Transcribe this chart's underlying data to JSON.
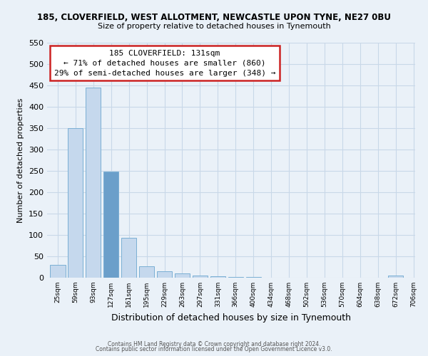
{
  "title": "185, CLOVERFIELD, WEST ALLOTMENT, NEWCASTLE UPON TYNE, NE27 0BU",
  "subtitle": "Size of property relative to detached houses in Tynemouth",
  "xlabel": "Distribution of detached houses by size in Tynemouth",
  "ylabel": "Number of detached properties",
  "bar_values": [
    30,
    350,
    445,
    248,
    93,
    27,
    15,
    10,
    5,
    3,
    2,
    1,
    0,
    0,
    0,
    0,
    0,
    0,
    0,
    5
  ],
  "bin_labels": [
    "25sqm",
    "59sqm",
    "93sqm",
    "127sqm",
    "161sqm",
    "195sqm",
    "229sqm",
    "263sqm",
    "297sqm",
    "331sqm",
    "366sqm",
    "400sqm",
    "434sqm",
    "468sqm",
    "502sqm",
    "536sqm",
    "570sqm",
    "604sqm",
    "638sqm",
    "672sqm",
    "706sqm"
  ],
  "bar_color": "#c5d8ed",
  "bar_edge_color": "#7aafd4",
  "highlight_bin_index": 3,
  "highlight_color": "#6b9fca",
  "ylim": [
    0,
    550
  ],
  "yticks": [
    0,
    50,
    100,
    150,
    200,
    250,
    300,
    350,
    400,
    450,
    500,
    550
  ],
  "annotation_title": "185 CLOVERFIELD: 131sqm",
  "annotation_line1": "← 71% of detached houses are smaller (860)",
  "annotation_line2": "29% of semi-detached houses are larger (348) →",
  "footer_line1": "Contains HM Land Registry data © Crown copyright and database right 2024.",
  "footer_line2": "Contains public sector information licensed under the Open Government Licence v3.0.",
  "grid_color": "#c8d8e8",
  "background_color": "#eaf1f8"
}
